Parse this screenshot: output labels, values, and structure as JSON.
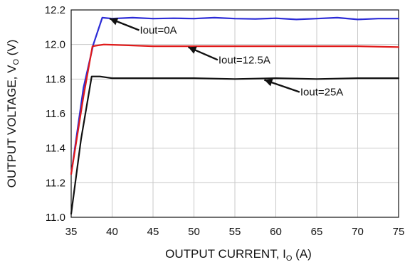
{
  "chart_data": {
    "type": "line",
    "xlabel": "OUTPUT CURRENT, I",
    "xlabel_sub": "O",
    "xlabel_unit": " (A)",
    "ylabel": "OUTPUT VOLTAGE, V",
    "ylabel_sub": "O",
    "ylabel_unit": " (V)",
    "xlim": [
      35,
      75
    ],
    "ylim": [
      11.0,
      12.2
    ],
    "x_ticks": [
      35,
      40,
      45,
      50,
      55,
      60,
      65,
      70,
      75
    ],
    "y_ticks": [
      11.0,
      11.2,
      11.4,
      11.6,
      11.8,
      12.0,
      12.2
    ],
    "y_tick_labels": [
      "11.0",
      "11.2",
      "11.4",
      "11.6",
      "11.8",
      "12.0",
      "12.2"
    ],
    "grid": true,
    "legend": "none",
    "series": [
      {
        "color": "#2b2bd6",
        "x": [
          35,
          36.5,
          37.7,
          38.8,
          40,
          42.5,
          45,
          47.5,
          50,
          52.5,
          55,
          57.5,
          60,
          62.5,
          65,
          67.5,
          70,
          72.5,
          75
        ],
        "y": [
          11.25,
          11.75,
          12.0,
          12.155,
          12.15,
          12.155,
          12.15,
          12.152,
          12.15,
          12.155,
          12.15,
          12.148,
          12.152,
          12.145,
          12.15,
          12.155,
          12.145,
          12.15,
          12.15
        ]
      },
      {
        "color": "#e01a1a",
        "x": [
          35,
          36.5,
          37.6,
          39,
          42,
          45,
          50,
          55,
          60,
          65,
          70,
          75
        ],
        "y": [
          11.25,
          11.7,
          11.99,
          12.0,
          11.995,
          11.99,
          11.99,
          11.99,
          11.99,
          11.99,
          11.99,
          11.985
        ]
      },
      {
        "color": "#111111",
        "x": [
          35,
          36.2,
          37.5,
          38.5,
          40,
          45,
          50,
          55,
          60,
          65,
          70,
          75
        ],
        "y": [
          11.02,
          11.45,
          11.815,
          11.815,
          11.805,
          11.805,
          11.805,
          11.8,
          11.805,
          11.8,
          11.805,
          11.805
        ]
      }
    ],
    "annotations": [
      {
        "text": "Iout=0A",
        "tail": [
          43.3,
          12.083
        ],
        "head": [
          39.7,
          12.15
        ]
      },
      {
        "text": "Iout=12.5A",
        "tail": [
          52.9,
          11.911
        ],
        "head": [
          49.3,
          11.985
        ]
      },
      {
        "text": "Iout=25A",
        "tail": [
          62.9,
          11.725
        ],
        "head": [
          58.6,
          11.795
        ]
      }
    ]
  }
}
